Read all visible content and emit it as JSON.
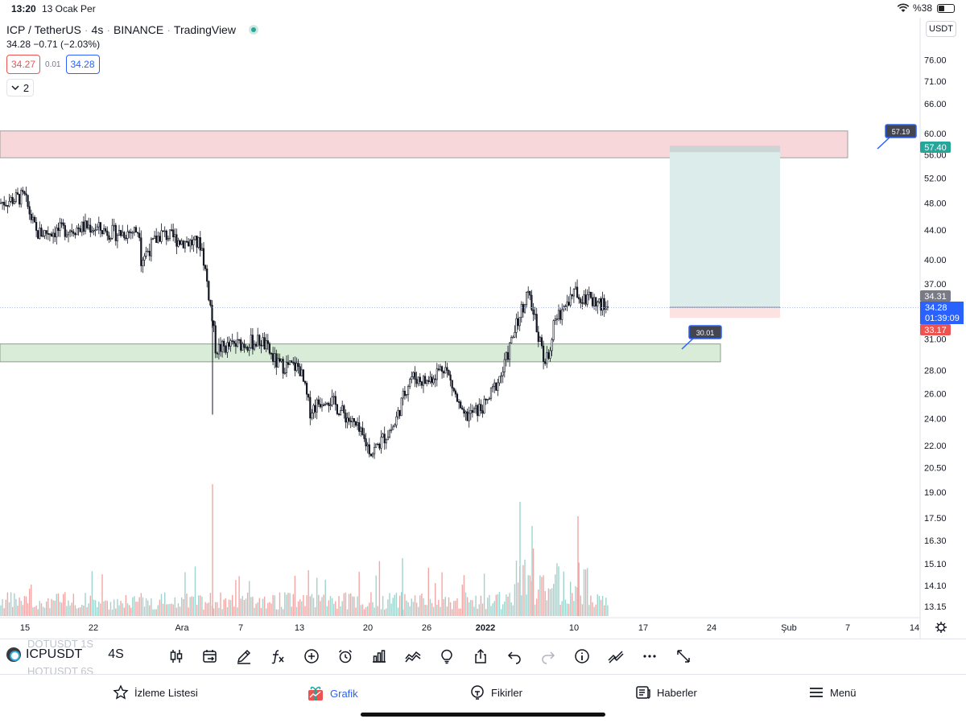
{
  "status_bar": {
    "time": "13:20",
    "date": "13 Ocak Per",
    "battery": "%38"
  },
  "header": {
    "symbol": "ICP / TetherUS",
    "interval": "4s",
    "exchange": "BINANCE",
    "source": "TradingView",
    "separator": "·",
    "price_change": "34.28 −0.71 (−2.03%)",
    "sell_price": "34.27",
    "spread": "0.01",
    "buy_price": "34.28",
    "collapsed_count": "2"
  },
  "currency_button": "USDT",
  "colors": {
    "up": "#26a69a",
    "down": "#ef5350",
    "accent": "#2962ff",
    "resistance_zone": "#f8d7da",
    "support_zone": "#d8ecd8",
    "target_zone": "#dcecea"
  },
  "chart_data": {
    "type": "candlestick",
    "price_scale": "log",
    "ylim": [
      13.15,
      76.0
    ],
    "y_ticks": [
      "76.00",
      "71.00",
      "66.00",
      "60.00",
      "56.00",
      "52.00",
      "48.00",
      "44.00",
      "40.00",
      "37.00",
      "31.00",
      "28.00",
      "26.00",
      "24.00",
      "22.00",
      "20.50",
      "19.00",
      "17.50",
      "16.30",
      "15.10",
      "14.10",
      "13.15"
    ],
    "x_ticks": [
      "15",
      "22",
      "Ara",
      "7",
      "13",
      "20",
      "26",
      "2022",
      "10",
      "17",
      "24",
      "Şub",
      "7",
      "14"
    ],
    "price_path": [
      {
        "date": "15",
        "price": 48.0
      },
      {
        "date": "18",
        "price": 49.0
      },
      {
        "date": "20",
        "price": 43.5
      },
      {
        "date": "22",
        "price": 44.5
      },
      {
        "date": "24",
        "price": 43.5
      },
      {
        "date": "26",
        "price": 44.0
      },
      {
        "date": "28",
        "price": 40.0
      },
      {
        "date": "30",
        "price": 43.5
      },
      {
        "date": "Ara",
        "price": 42.5
      },
      {
        "date": "3",
        "price": 42.0
      },
      {
        "date": "4",
        "price": 34.0
      },
      {
        "date": "5",
        "price": 30.0
      },
      {
        "date": "7",
        "price": 30.5
      },
      {
        "date": "9",
        "price": 30.8
      },
      {
        "date": "11",
        "price": 28.5
      },
      {
        "date": "13",
        "price": 28.3
      },
      {
        "date": "15",
        "price": 24.6
      },
      {
        "date": "17",
        "price": 25.8
      },
      {
        "date": "19",
        "price": 23.5
      },
      {
        "date": "20",
        "price": 21.5
      },
      {
        "date": "22",
        "price": 23.5
      },
      {
        "date": "24",
        "price": 27.5
      },
      {
        "date": "26",
        "price": 27.0
      },
      {
        "date": "28",
        "price": 28.5
      },
      {
        "date": "30",
        "price": 24.0
      },
      {
        "date": "2022",
        "price": 25.0
      },
      {
        "date": "4",
        "price": 28.0
      },
      {
        "date": "6",
        "price": 36.0
      },
      {
        "date": "8",
        "price": 28.5
      },
      {
        "date": "9",
        "price": 33.0
      },
      {
        "date": "10",
        "price": 36.0
      },
      {
        "date": "12",
        "price": 35.0
      },
      {
        "date": "13",
        "price": 34.28
      }
    ],
    "zones": [
      {
        "name": "resistance",
        "from": 55.5,
        "to": 60.5
      },
      {
        "name": "support",
        "from": 28.8,
        "to": 30.5
      },
      {
        "name": "target",
        "from": 34.31,
        "to": 57.4
      },
      {
        "name": "stop",
        "from": 33.17,
        "to": 34.31
      }
    ],
    "labels": {
      "alert_high": "57.19",
      "target_price": "57.40",
      "alert_low": "30.01",
      "entry_price": "34.31",
      "last_price": "34.28",
      "countdown": "01:39:09",
      "stop_price": "33.17"
    }
  },
  "toolbar": {
    "symbol": "ICPUSDT",
    "interval": "4S",
    "ghost_above": "DOTUSDT   1S",
    "ghost_below": "HOTUSDT   6S"
  },
  "tabs": [
    {
      "label": "İzleme Listesi",
      "icon": "star-icon"
    },
    {
      "label": "Grafik",
      "icon": "chart-gift-icon",
      "active": true
    },
    {
      "label": "Fikirler",
      "icon": "lightbulb-icon"
    },
    {
      "label": "Haberler",
      "icon": "news-icon"
    },
    {
      "label": "Menü",
      "icon": "menu-icon"
    }
  ]
}
